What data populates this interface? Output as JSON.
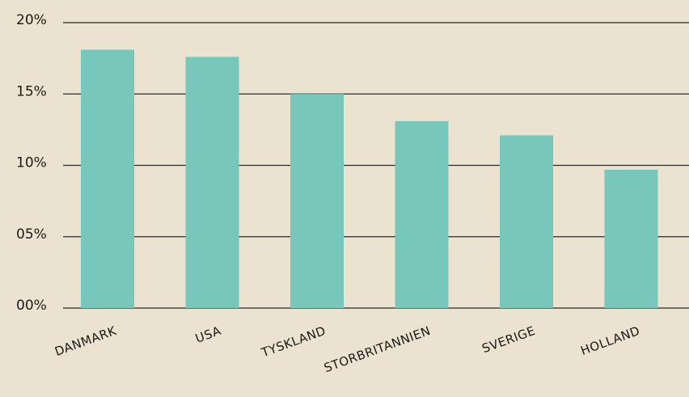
{
  "chart_data": {
    "type": "bar",
    "categories": [
      "DANMARK",
      "USA",
      "TYSKLAND",
      "STORBRITANNIEN",
      "SVERIGE",
      "HOLLAND"
    ],
    "values": [
      18.1,
      17.6,
      15.0,
      13.1,
      12.1,
      9.7
    ],
    "ylim": [
      0,
      20
    ],
    "yticks": [
      "00%",
      "05%",
      "10%",
      "15%",
      "20%"
    ],
    "ytick_values": [
      0,
      5,
      10,
      15,
      20
    ],
    "grid": true,
    "bar_color": "#77c8bb",
    "background": "#ebe3cf",
    "title": "",
    "xlabel": "",
    "ylabel": ""
  }
}
